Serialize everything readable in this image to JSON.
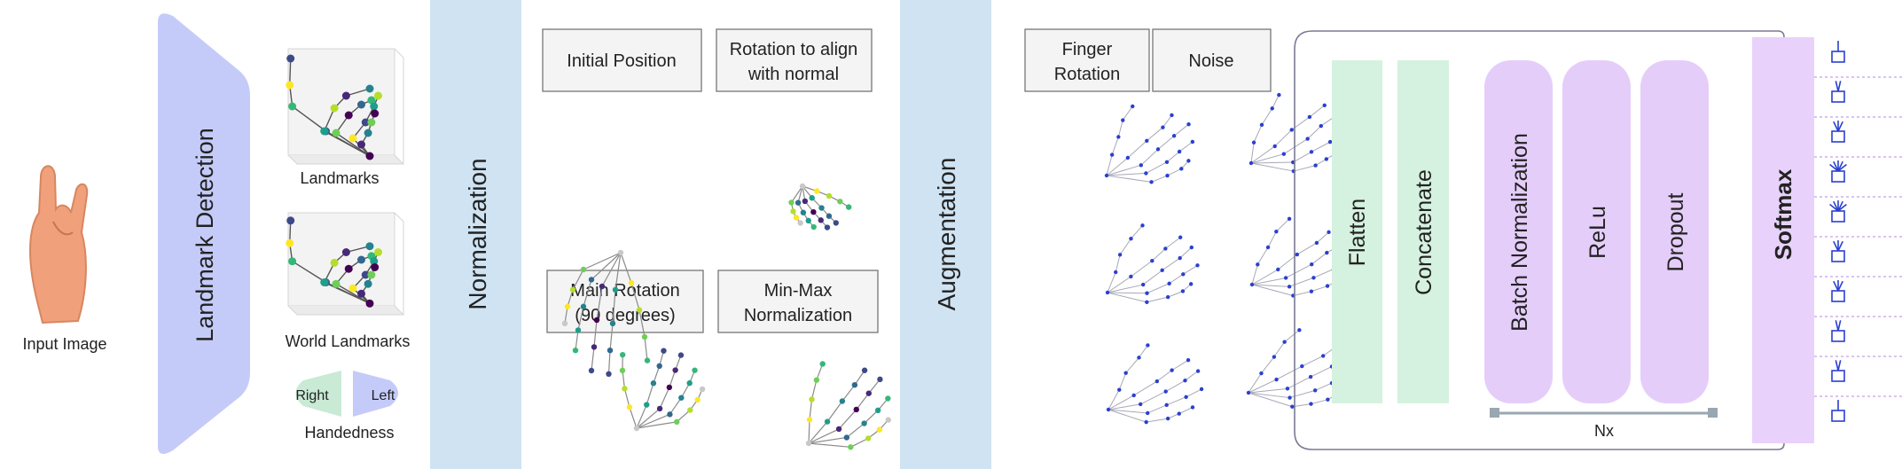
{
  "input": {
    "label": "Input Image"
  },
  "landmark_detection": {
    "label": "Landmark Detection",
    "outputs": {
      "landmarks": "Landmarks",
      "world_landmarks": "World Landmarks",
      "handedness": "Handedness",
      "right": "Right",
      "left": "Left"
    }
  },
  "normalization": {
    "label": "Normalization",
    "steps": {
      "initial": "Initial Position",
      "align_line1": "Rotation to align",
      "align_line2": "with normal",
      "main_line1": "Main Rotation",
      "main_line2": "(90 degrees)",
      "minmax_line1": "Min-Max",
      "minmax_line2": "Normalization"
    }
  },
  "augmentation": {
    "label": "Augmentation",
    "steps": {
      "finger_line1": "Finger",
      "finger_line2": "Rotation",
      "noise": "Noise"
    }
  },
  "network": {
    "flatten": "Flatten",
    "concatenate": "Concatenate",
    "batch_norm": "Batch Normalization",
    "relu": "ReLu",
    "dropout": "Dropout",
    "repeat": "Nx",
    "softmax": "Softmax"
  },
  "colors": {
    "landmark_detection": "#c5cbf8",
    "normalization": "#cfe3f2",
    "flatten": "#d5f1df",
    "network_block": "#e5cdfa",
    "softmax": "#e8d2fb",
    "right": "#c9ead5",
    "left": "#c5cbf8",
    "icon": "#2b3fcf",
    "skin": "#f0a07a"
  },
  "class_count": 10
}
